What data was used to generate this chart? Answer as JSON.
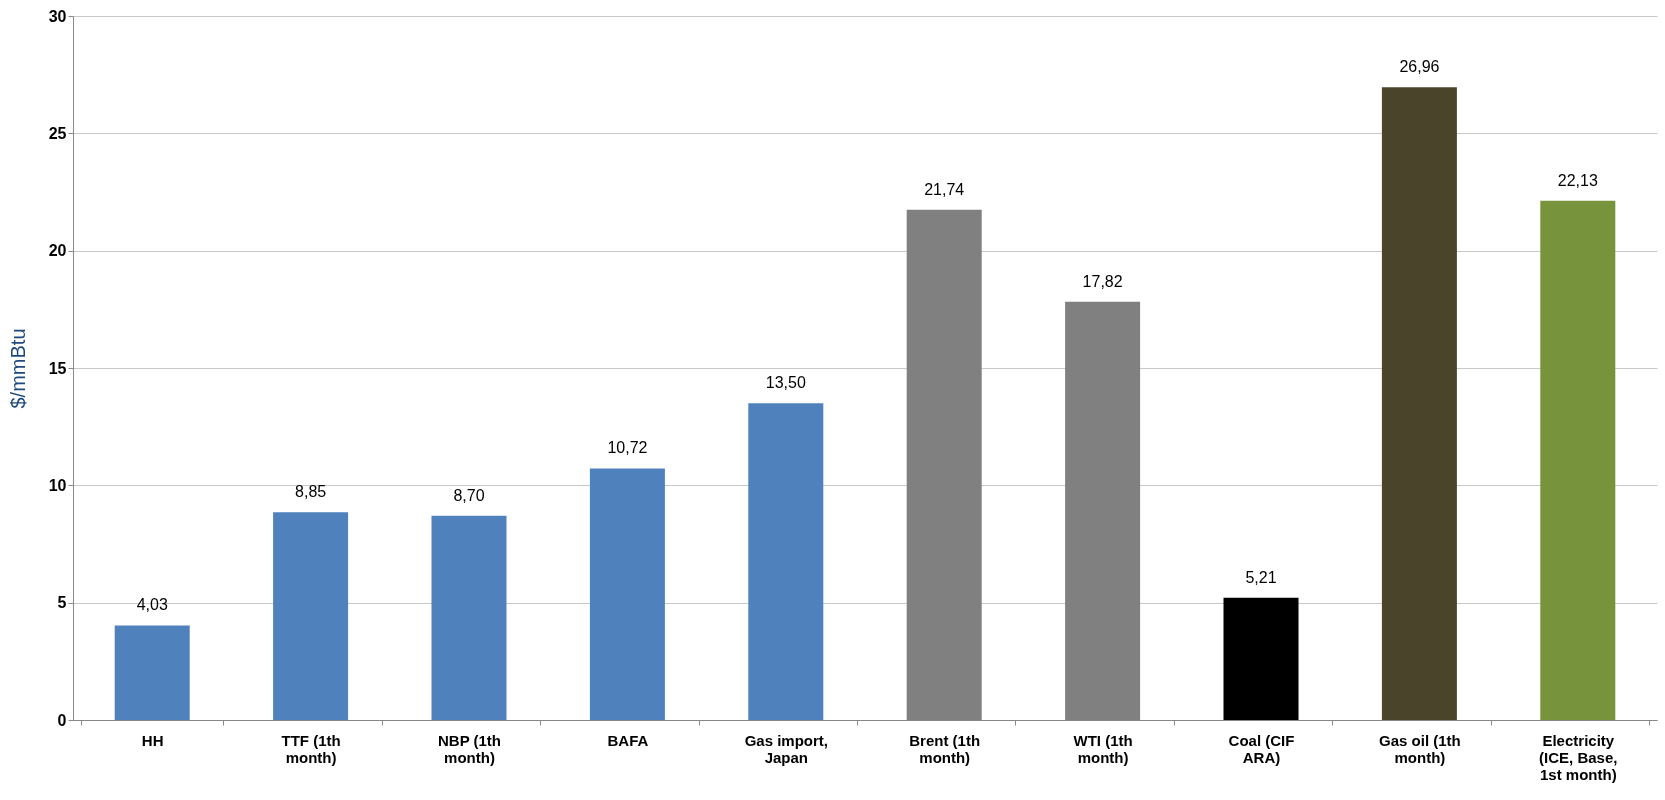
{
  "chart_data": {
    "type": "bar",
    "ylabel": "$/mmBtu",
    "categories": [
      "HH",
      "TTF (1th month)",
      "NBP (1th month)",
      "BAFA",
      "Gas import, Japan",
      "Brent (1th month)",
      "WTI (1th month)",
      "Coal (CIF ARA)",
      "Gas oil (1th month)",
      "Electricity (ICE, Base, 1st month)"
    ],
    "values": [
      4.03,
      8.85,
      8.7,
      10.72,
      13.5,
      21.74,
      17.82,
      5.21,
      26.96,
      22.13
    ],
    "value_labels": [
      "4,03",
      "8,85",
      "8,70",
      "10,72",
      "13,50",
      "21,74",
      "17,82",
      "5,21",
      "26,96",
      "22,13"
    ],
    "colors": [
      "#4f81bd",
      "#4f81bd",
      "#4f81bd",
      "#4f81bd",
      "#4f81bd",
      "#808080",
      "#808080",
      "#000000",
      "#4a452a",
      "#77933c"
    ],
    "ylim": [
      0,
      30
    ],
    "yticks": [
      0,
      5,
      10,
      15,
      20,
      25,
      30
    ],
    "grid": "y"
  }
}
